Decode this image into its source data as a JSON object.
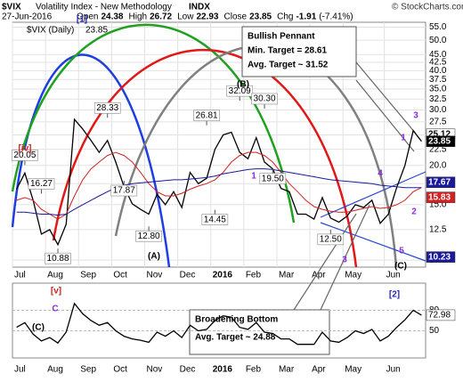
{
  "chart_data": [
    {
      "type": "line",
      "log_scale": true,
      "title": "$VIX",
      "subtitle": "Volatility Index - New Methodology",
      "exchange": "INDX",
      "date": "27-Jun-2016",
      "quote": [
        {
          "label": "Open",
          "value": 24.38
        },
        {
          "label": "High",
          "value": 26.72
        },
        {
          "label": "Low",
          "value": 22.93
        },
        {
          "label": "Close",
          "value": 23.85
        },
        {
          "label": "Chg",
          "value": -1.91
        }
      ],
      "chg_pct": {
        "value": -7.41,
        "label": "(-7.41%)"
      },
      "copyright": "© StockCharts.com",
      "categories": [
        "Jul",
        null,
        null,
        null,
        "Aug",
        null,
        null,
        null,
        "Sep",
        null,
        null,
        null,
        "Oct",
        null,
        null,
        null,
        "Nov",
        null,
        null,
        null,
        "Dec",
        null,
        null,
        null,
        "2016",
        null,
        null,
        null,
        "Feb",
        null,
        null,
        null,
        "Mar",
        null,
        null,
        null,
        "Apr",
        null,
        null,
        null,
        "May",
        null,
        null,
        null,
        null,
        "Jun",
        null,
        null,
        null,
        null
      ],
      "series": [
        {
          "name": "$VIX (Daily)",
          "color": "#000000",
          "values": [
            16.8,
            18.9,
            15.5,
            12.1,
            12.5,
            11.2,
            13.0,
            28.0,
            26.1,
            24.0,
            22.0,
            24.0,
            20.5,
            17.1,
            15.1,
            14.5,
            14.0,
            16.2,
            15.0,
            16.5,
            14.7,
            19.0,
            17.5,
            18.2,
            22.5,
            25.0,
            25.5,
            22.0,
            21.0,
            24.5,
            20.5,
            19.5,
            16.9,
            16.5,
            14.0,
            14.0,
            13.5,
            15.8,
            13.6,
            13.2,
            13.8,
            15.0,
            14.7,
            15.5,
            13.1,
            14.0,
            17.0,
            20.0,
            25.8,
            23.85
          ]
        },
        {
          "color": "#d42020",
          "values": [
            15.5,
            15.8,
            15.5,
            14.5,
            14.0,
            13.5,
            14.0,
            16.0,
            18.0,
            19.5,
            20.5,
            21.5,
            22.0,
            21.5,
            20.5,
            19.0,
            17.5,
            16.5,
            16.0,
            16.0,
            16.3,
            16.8,
            17.2,
            17.5,
            18.0,
            19.0,
            20.5,
            21.5,
            22.0,
            22.0,
            21.5,
            20.5,
            19.0,
            17.5,
            16.5,
            15.5,
            14.8,
            14.5,
            14.3,
            14.2,
            14.2,
            14.4,
            14.6,
            14.8,
            14.6,
            14.7,
            15.0,
            15.5,
            16.5,
            17.0
          ]
        },
        {
          "color": "#1a1a9a",
          "values": [
            14.2,
            14.2,
            14.1,
            14.0,
            14.0,
            13.9,
            14.0,
            14.5,
            15.0,
            15.5,
            16.0,
            16.5,
            17.0,
            17.3,
            17.5,
            17.6,
            17.7,
            17.8,
            17.9,
            18.0,
            18.0,
            18.1,
            18.2,
            18.3,
            18.5,
            18.8,
            19.0,
            19.2,
            19.4,
            19.5,
            19.5,
            19.4,
            19.2,
            19.0,
            18.8,
            18.6,
            18.4,
            18.2,
            18.0,
            17.9,
            17.8,
            17.7,
            17.6,
            17.5,
            17.3,
            17.2,
            17.1,
            17.0,
            17.0,
            17.0
          ]
        }
      ],
      "ylim": [
        9.5,
        57
      ],
      "yticks": [
        {
          "value": 10,
          "label": "10.0"
        },
        {
          "value": 12.5,
          "label": "12.5"
        },
        {
          "value": 15,
          "label": "15.0"
        },
        {
          "value": 17.5,
          "label": "17.5"
        },
        {
          "value": 20,
          "label": "20.0"
        },
        {
          "value": 22.5,
          "label": "22.5"
        },
        {
          "value": 25,
          "label": "25.0"
        },
        {
          "value": 27.5,
          "label": "27.5"
        },
        {
          "value": 30,
          "label": "30.0"
        },
        {
          "value": 32.5,
          "label": "32.5"
        },
        {
          "value": 35,
          "label": "35.0"
        },
        {
          "value": 37.5,
          "label": "37.5"
        },
        {
          "value": 40,
          "label": "40.0"
        },
        {
          "value": 42.5,
          "label": "42.5"
        },
        {
          "value": 45,
          "label": "45.0"
        },
        {
          "value": 50,
          "label": "50.0"
        },
        {
          "value": 55,
          "label": "55.0"
        }
      ],
      "grid": true,
      "point_labels": [
        20.05,
        16.27,
        10.88,
        28.33,
        17.87,
        {
          "value": 12.8,
          "label": "12.80"
        },
        26.81,
        14.45,
        32.09,
        {
          "value": 30.3,
          "label": "30.30"
        },
        {
          "value": 19.5,
          "label": "19.50"
        },
        {
          "value": 12.5,
          "label": "12.50"
        }
      ],
      "right_labels": [
        {
          "value": 25.12,
          "color": "#ffffff"
        },
        {
          "value": 23.85,
          "color": "#000000"
        },
        {
          "value": 17.67,
          "color": "#1a1a9a"
        },
        {
          "value": 15.83,
          "color": "#d42020"
        },
        {
          "value": 10.23,
          "color": "#1a1a9a"
        }
      ],
      "annotations": [
        {
          "text": "[1]",
          "color": "#2424b8"
        },
        {
          "text": "(B)",
          "color": "#000000"
        },
        {
          "text": "2",
          "color": "#8a2be2"
        },
        {
          "text": "3",
          "color": "#8a2be2"
        },
        {
          "text": "1",
          "color": "#8a2be2"
        },
        {
          "text": "4",
          "color": "#8a2be2"
        },
        {
          "text": "2",
          "color": "#8a2be2"
        },
        {
          "text": "5",
          "color": "#8a2be2"
        },
        {
          "text": "(A)",
          "color": "#000000"
        },
        {
          "text": "(C)",
          "color": "#000000"
        },
        {
          "text": "1",
          "color": "#8a2be2"
        },
        {
          "text": "3",
          "color": "#8a2be2"
        },
        {
          "text": "[iv]",
          "color": "#d42020"
        }
      ],
      "callouts": [
        [
          "Bullish Pennant",
          "Min. Target = 28.61",
          "Avg. Target ~ 31.52"
        ],
        [
          "Broadening Bottom",
          "Avg. Target ~ 24.88"
        ]
      ]
    },
    {
      "type": "line",
      "categories": [
        "Jul",
        null,
        null,
        null,
        "Aug",
        null,
        null,
        null,
        "Sep",
        null,
        null,
        null,
        "Oct",
        null,
        null,
        null,
        "Nov",
        null,
        null,
        null,
        "Dec",
        null,
        null,
        null,
        "2016",
        null,
        null,
        null,
        "Feb",
        null,
        null,
        null,
        "Mar",
        null,
        null,
        null,
        "Apr",
        null,
        null,
        null,
        "May",
        null,
        null,
        null,
        null,
        "Jun",
        null,
        null,
        null,
        null
      ],
      "series": [
        {
          "color": "#000000",
          "values": [
            55,
            62,
            45,
            35,
            40,
            32,
            48,
            90,
            75,
            65,
            58,
            62,
            50,
            42,
            38,
            36,
            33,
            48,
            42,
            50,
            40,
            58,
            50,
            52,
            65,
            72,
            70,
            55,
            52,
            62,
            48,
            46,
            38,
            38,
            30,
            30,
            30,
            48,
            35,
            33,
            40,
            50,
            46,
            52,
            35,
            42,
            55,
            66,
            80,
            72.98
          ]
        }
      ],
      "ylim": [
        10,
        120
      ],
      "yticks": [
        50,
        80
      ],
      "current": 72.98,
      "annotations": [
        {
          "text": "[v]",
          "color": "#d42020"
        },
        {
          "text": "C",
          "color": "#8a2be2"
        },
        {
          "text": "(C)",
          "color": "#000000"
        },
        {
          "text": "[2]",
          "color": "#2424b8"
        }
      ]
    }
  ]
}
